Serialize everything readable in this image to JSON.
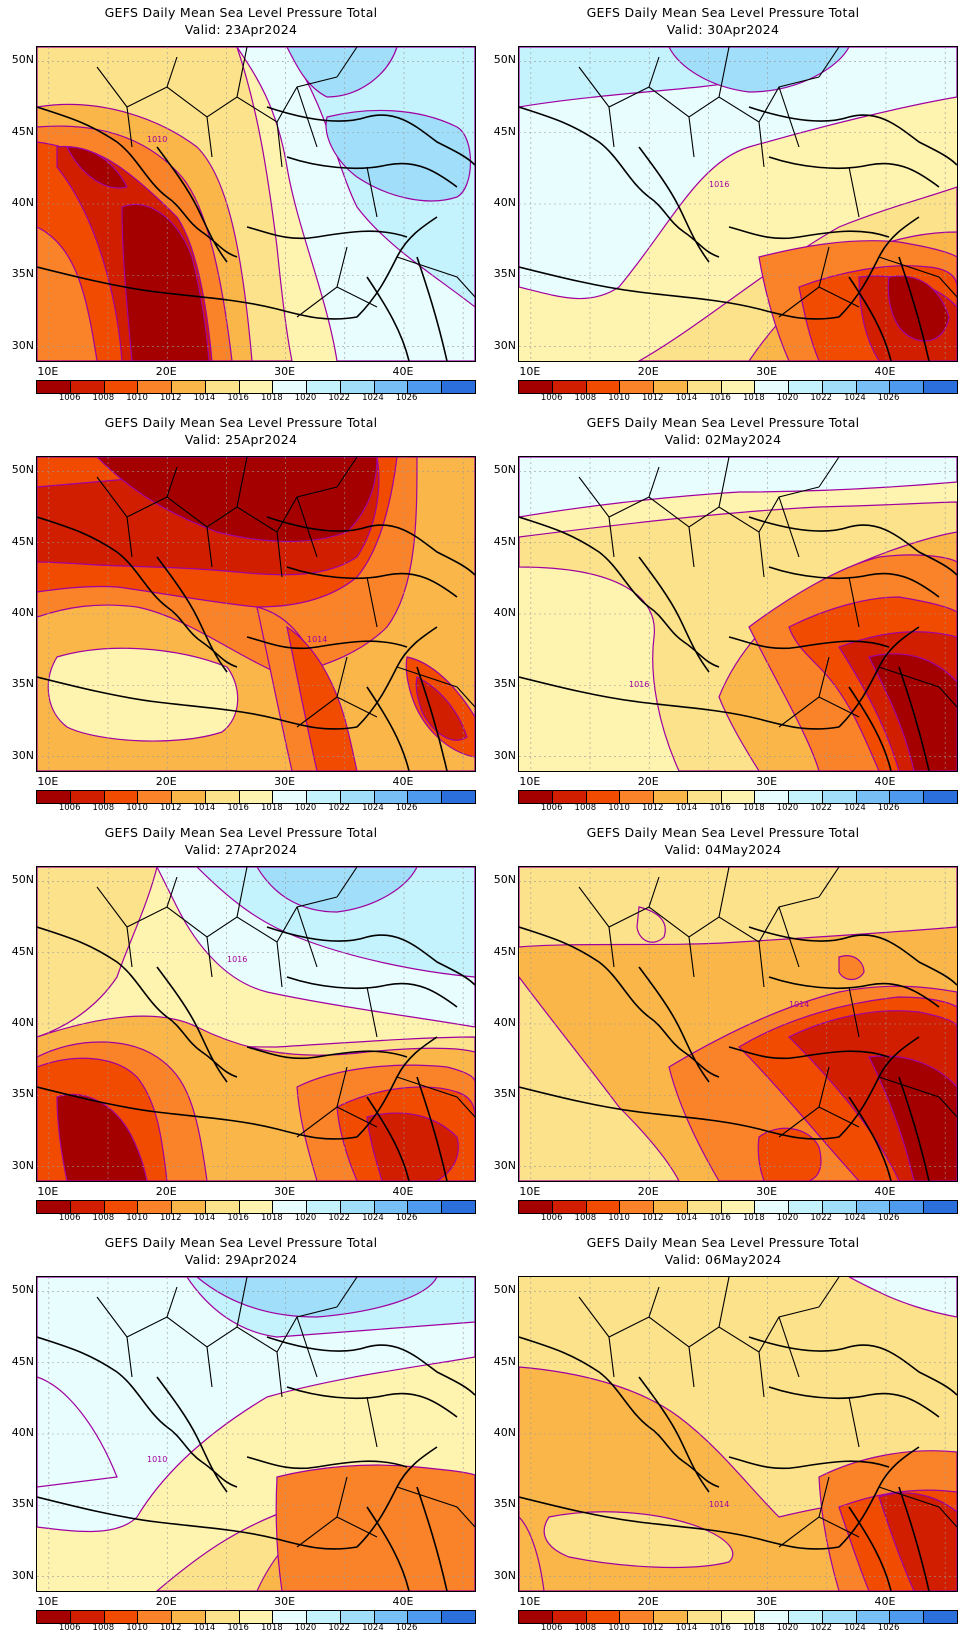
{
  "colors": {
    "bins": [
      "#a50000",
      "#d21e00",
      "#f04b00",
      "#fa8228",
      "#fbb64a",
      "#fde28c",
      "#fff3b0",
      "#e8fdfe",
      "#c4f2fd",
      "#a0defa",
      "#78bff5",
      "#4e9aee",
      "#2b6fdd"
    ],
    "contour": "#a000a0",
    "coast": "#000000"
  },
  "colorbar": {
    "labels": [
      "1006",
      "1008",
      "1010",
      "1012",
      "1014",
      "1016",
      "1018",
      "1020",
      "1022",
      "1024",
      "1026"
    ]
  },
  "axes": {
    "lat_ticks": [
      "50N",
      "45N",
      "40N",
      "35N",
      "30N"
    ],
    "lon_ticks": [
      "10E",
      "20E",
      "30E",
      "40E"
    ],
    "lon_range": [
      9,
      46
    ],
    "lat_range": [
      29,
      51
    ]
  },
  "panels": [
    {
      "title": "GEFS Daily Mean Sea Level Pressure Total",
      "valid": "Valid: 23Apr2024",
      "theme": "west-low",
      "contour_label": "1010"
    },
    {
      "title": "GEFS Daily Mean Sea Level Pressure Total",
      "valid": "Valid: 30Apr2024",
      "theme": "east-low",
      "contour_label": "1016"
    },
    {
      "title": "GEFS Daily Mean Sea Level Pressure Total",
      "valid": "Valid: 25Apr2024",
      "theme": "north-low",
      "contour_label": "1014"
    },
    {
      "title": "GEFS Daily Mean Sea Level Pressure Total",
      "valid": "Valid: 02May2024",
      "theme": "se-low",
      "contour_label": "1016"
    },
    {
      "title": "GEFS Daily Mean Sea Level Pressure Total",
      "valid": "Valid: 27Apr2024",
      "theme": "sw-low",
      "contour_label": "1016"
    },
    {
      "title": "GEFS Daily Mean Sea Level Pressure Total",
      "valid": "Valid: 04May2024",
      "theme": "mid-low",
      "contour_label": "1014"
    },
    {
      "title": "GEFS Daily Mean Sea Level Pressure Total",
      "valid": "Valid: 29Apr2024",
      "theme": "north-high",
      "contour_label": "1010"
    },
    {
      "title": "GEFS Daily Mean Sea Level Pressure Total",
      "valid": "Valid: 06May2024",
      "theme": "warm",
      "contour_label": "1014"
    }
  ]
}
